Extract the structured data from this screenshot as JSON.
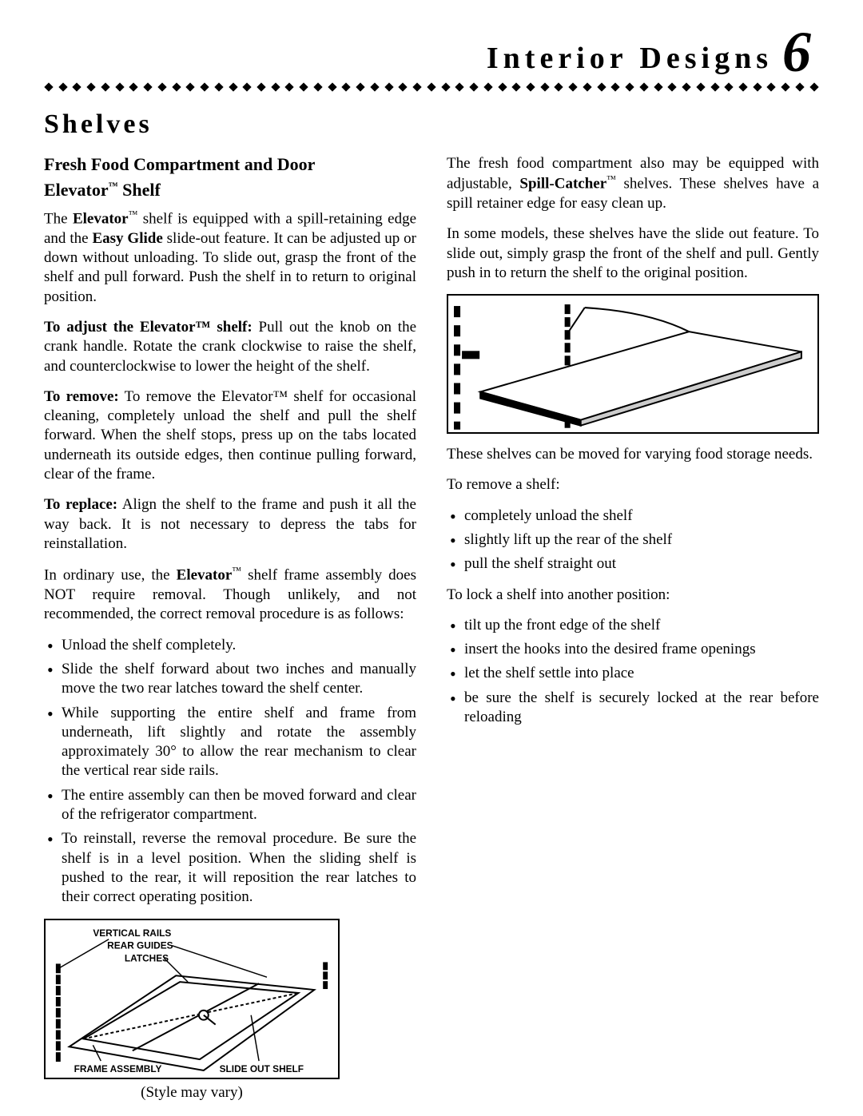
{
  "header": {
    "title": "Interior Designs",
    "page_number": "6"
  },
  "section_title": "Shelves",
  "left": {
    "sub1": "Fresh Food Compartment and Door",
    "sub2_pre": "Elevator",
    "sub2_post": " Shelf",
    "p1_a": "The ",
    "p1_b": "Elevator",
    "p1_c": " shelf is equipped with a spill-retaining edge and the ",
    "p1_d": "Easy Glide",
    "p1_e": " slide-out feature.  It can be adjusted up or down without unloading. To slide out, grasp the front of the shelf and pull forward.  Push the shelf in to return to original position.",
    "p2_lead": "To adjust the Elevator™ shelf:",
    "p2_rest": " Pull out the knob on the crank handle. Rotate the crank clockwise to raise the shelf, and counterclockwise to lower the height of the shelf.",
    "p3_lead": "To remove:",
    "p3_rest": " To remove the Elevator™ shelf for occasional cleaning, completely unload the shelf and pull the shelf forward. When the shelf stops, press up on the tabs located underneath its outside edges, then continue pulling forward, clear of the frame.",
    "p4_lead": "To replace:",
    "p4_rest": " Align the shelf to the frame and push it all the way back. It is not necessary to depress the tabs for reinstallation.",
    "p5_a": "In ordinary use, the ",
    "p5_b": "Elevator",
    "p5_c": " shelf frame assembly does NOT require removal. Though unlikely, and not recommended, the correct removal procedure is as follows:",
    "bullets": [
      "Unload the shelf completely.",
      "Slide the shelf forward about two inches and manually move the two rear latches toward the shelf center.",
      "While supporting the entire shelf and frame from underneath, lift slightly and rotate the assembly approximately 30° to allow the rear mechanism to clear the vertical rear side rails.",
      "The entire assembly can then be moved forward and clear of the refrigerator compartment.",
      "To reinstall, reverse the removal procedure.  Be sure the shelf is in a level position.  When the sliding shelf is pushed to the rear, it will reposition the rear latches to their correct operating position."
    ],
    "fig1_labels": {
      "vertical_rails": "VERTICAL RAILS",
      "rear_guides": "REAR GUIDES",
      "latches": "LATCHES",
      "frame_assembly": "FRAME ASSEMBLY",
      "slide_out_shelf": "SLIDE OUT SHELF"
    },
    "fig1_caption": "(Style may vary)"
  },
  "right": {
    "p1_a": "The fresh food compartment also may be equipped with adjustable, ",
    "p1_b": "Spill-Catcher",
    "p1_c": " shelves. These shelves have a spill retainer edge for easy clean up.",
    "p2": "In some models, these shelves have the slide out feature. To slide out, simply grasp the front of the shelf and pull. Gently push in to return the shelf to the original position.",
    "p3": "These shelves can be moved for varying food storage needs.",
    "p4": "To remove a shelf:",
    "bullets1": [
      "completely unload the shelf",
      "slightly lift up the rear of the shelf",
      "pull the shelf straight out"
    ],
    "p5": "To lock a shelf into another position:",
    "bullets2": [
      "tilt up the front edge of the shelf",
      "insert the hooks into the desired frame openings",
      "let the shelf settle into place",
      "be sure the shelf is securely locked at the rear before reloading"
    ]
  },
  "colors": {
    "text": "#000000",
    "bg": "#ffffff"
  }
}
